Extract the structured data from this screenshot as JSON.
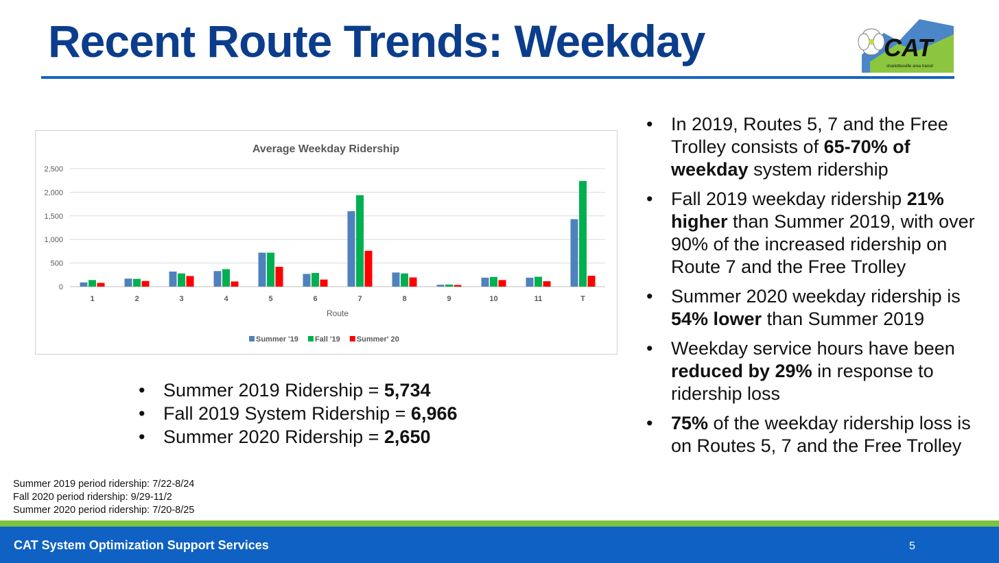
{
  "slide": {
    "title": "Recent Route Trends: Weekday",
    "logo_text": "CAT",
    "logo_subtext": "charlottesville area transit",
    "page_number": "5"
  },
  "chart_data": {
    "type": "bar",
    "title": "Average Weekday Ridership",
    "xlabel": "Route",
    "ylabel": "",
    "ylim": [
      0,
      2500
    ],
    "yticks": [
      "2,500",
      "2,000",
      "1,500",
      "1,000",
      "500",
      "0"
    ],
    "categories": [
      "1",
      "2",
      "3",
      "4",
      "5",
      "6",
      "7",
      "8",
      "9",
      "10",
      "11",
      "T"
    ],
    "series": [
      {
        "name": "Summer '19",
        "color": "#4f81bd",
        "values": [
          90,
          170,
          320,
          330,
          720,
          270,
          1600,
          300,
          40,
          190,
          190,
          1430
        ]
      },
      {
        "name": "Fall '19",
        "color": "#00b050",
        "values": [
          140,
          165,
          280,
          370,
          720,
          290,
          1940,
          280,
          45,
          205,
          210,
          2240
        ]
      },
      {
        "name": "Summer' 20",
        "color": "#ff0000",
        "values": [
          80,
          120,
          225,
          110,
          420,
          150,
          760,
          195,
          35,
          140,
          115,
          230
        ]
      }
    ],
    "grid": true,
    "legend": "bottom"
  },
  "stats": [
    {
      "label": "Summer 2019 Ridership = ",
      "value": "5,734"
    },
    {
      "label": "Fall 2019 System Ridership = ",
      "value": "6,966"
    },
    {
      "label": "Summer 2020 Ridership = ",
      "value": "2,650"
    }
  ],
  "bullets": [
    {
      "a": "In 2019, Routes 5, 7 and the Free Trolley consists of ",
      "b": "65-70% of weekday",
      "c": " system ridership"
    },
    {
      "a": "Fall 2019 weekday ridership ",
      "b": "21% higher",
      "c": " than Summer 2019, with over 90% of the increased ridership on Route 7 and the Free Trolley"
    },
    {
      "a": "Summer 2020 weekday ridership is ",
      "b": "54% lower",
      "c": " than Summer 2019"
    },
    {
      "a": "Weekday service hours have been ",
      "b": "reduced by 29%",
      "c": " in response to ridership loss"
    },
    {
      "a": "",
      "b": "75%",
      "c": " of the weekday ridership loss is on Routes 5, 7 and the Free Trolley"
    }
  ],
  "notes": [
    "Summer 2019 period ridership: 7/22-8/24",
    "Fall 2020 period ridership: 9/29-11/2",
    "Summer 2020 period ridership: 7/20-8/25"
  ],
  "footer": {
    "title": "CAT System Optimization Support Services"
  }
}
